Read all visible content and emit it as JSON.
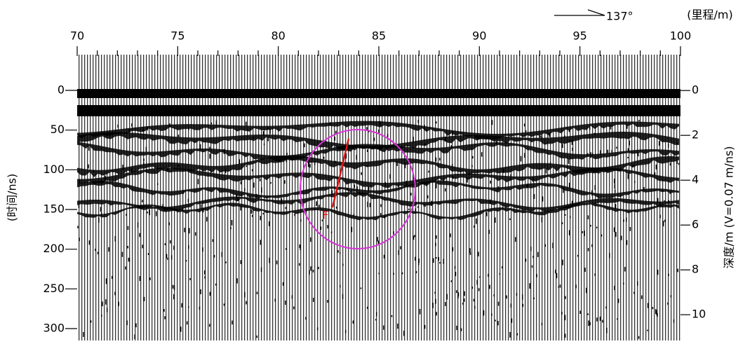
{
  "chart_data": {
    "type": "radargram",
    "x_label": "(里程/m)",
    "y_label": "(时间/ns)",
    "y2_label": "深度/m (V=0.07 m/ns)",
    "direction_label": "137°",
    "annotation": "F",
    "xlim": [
      70,
      100
    ],
    "xticks": [
      70,
      75,
      80,
      85,
      90,
      95,
      100
    ],
    "xminorticks": [
      71,
      72,
      73,
      74,
      76,
      77,
      78,
      79,
      81,
      82,
      83,
      84,
      86,
      87,
      88,
      89,
      91,
      92,
      93,
      94,
      96,
      97,
      98,
      99
    ],
    "ylim": [
      -45,
      315
    ],
    "yticks": [
      0,
      50,
      100,
      150,
      200,
      250,
      300
    ],
    "y2lim": [
      -1.6,
      11.15
    ],
    "y2ticks": [
      0,
      2,
      4,
      6,
      8,
      10
    ]
  }
}
